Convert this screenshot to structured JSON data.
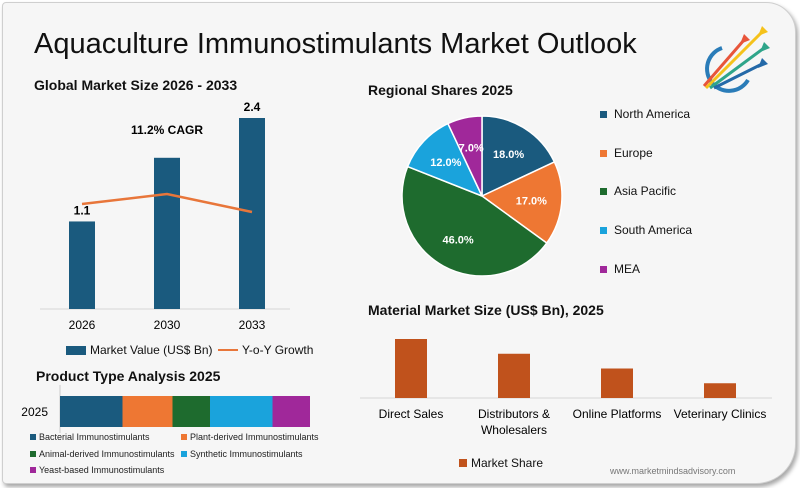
{
  "title": "Aquaculture Immunostimulants Market Outlook",
  "watermark": "www.marketmindsadvisory.com",
  "logo": {
    "icon": "arrows-globe-logo",
    "colors": [
      "#e8553a",
      "#f5c21b",
      "#2fa58a",
      "#2469a8"
    ]
  },
  "chart_data": [
    {
      "type": "bar",
      "title": "Global Market Size 2026 - 2033",
      "categories": [
        "2026",
        "2030",
        "2033"
      ],
      "series": [
        {
          "name": "Market Value (US$ Bn)",
          "values": [
            1.1,
            1.9,
            2.4
          ],
          "data_labels": [
            "1.1",
            "",
            "2.4"
          ],
          "color": "#1a5a7e"
        },
        {
          "name": "Y-o-Y Growth",
          "type": "line",
          "relative_values": [
            0.55,
            0.65,
            0.47
          ],
          "color": "#e8763a"
        }
      ],
      "annotation": "11.2% CAGR",
      "grid": false
    },
    {
      "type": "pie",
      "title": "Regional Shares 2025",
      "categories": [
        "North America",
        "Europe",
        "Asia Pacific",
        "South America",
        "MEA"
      ],
      "values": [
        18.0,
        17.0,
        46.0,
        12.0,
        7.0
      ],
      "labels": [
        "18.0%",
        "17.0%",
        "46.0%",
        "12.0%",
        "7.0%"
      ],
      "colors": [
        "#1a5a7e",
        "#ee7733",
        "#1e6b2e",
        "#1aa3dc",
        "#a0289a"
      ],
      "legend": "right"
    },
    {
      "type": "bar",
      "title": "Product Type Analysis 2025",
      "stacked": true,
      "orientation": "horizontal",
      "categories": [
        "2025"
      ],
      "series": [
        {
          "name": "Bacterial Immunostimulants",
          "values": [
            25
          ],
          "color": "#1a5a7e"
        },
        {
          "name": "Plant-derived Immunostimulants",
          "values": [
            20
          ],
          "color": "#ee7733"
        },
        {
          "name": "Animal-derived Immunostimulants",
          "values": [
            15
          ],
          "color": "#1e6b2e"
        },
        {
          "name": "Synthetic Immunostimulants",
          "values": [
            25
          ],
          "color": "#1aa3dc"
        },
        {
          "name": "Yeast-based Immunostimulants",
          "values": [
            15
          ],
          "color": "#a0289a"
        }
      ],
      "legend": "bottom"
    },
    {
      "type": "bar",
      "title": "Material Market Size (US$ Bn), 2025",
      "categories": [
        "Direct Sales",
        "Distributors & Wholesalers",
        "Online Platforms",
        "Veterinary Clinics"
      ],
      "category_lines": [
        [
          "Direct Sales"
        ],
        [
          "Distributors &",
          "Wholesalers"
        ],
        [
          "Online Platforms"
        ],
        [
          "Veterinary Clinics"
        ]
      ],
      "series": [
        {
          "name": "Market Share",
          "values": [
            4,
            3,
            2,
            1
          ],
          "color": "#c0521c"
        }
      ],
      "legend": "bottom"
    }
  ]
}
